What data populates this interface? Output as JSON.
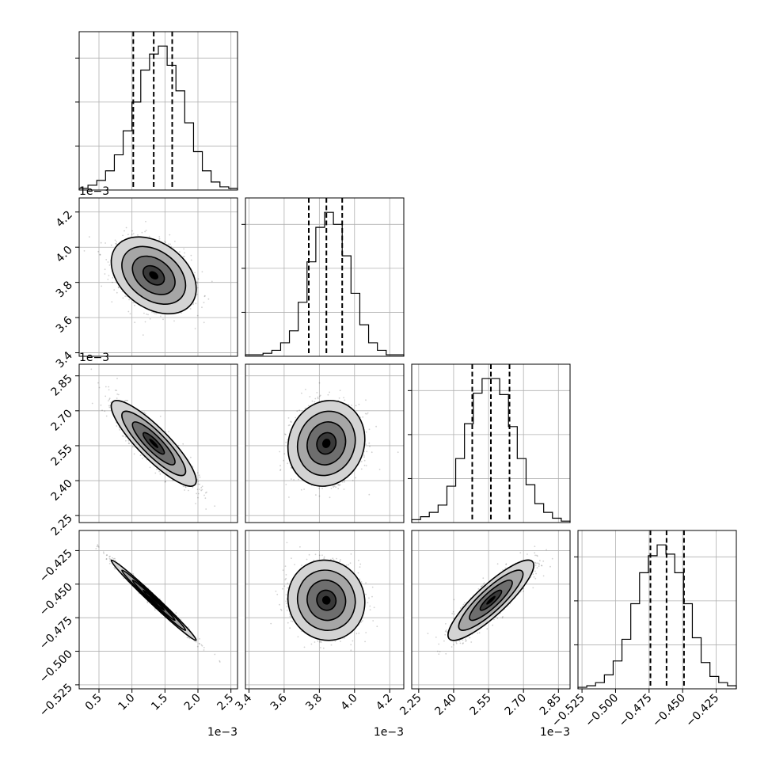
{
  "chart_data": {
    "type": "corner",
    "parameters": [
      {
        "range": [
          0.2,
          2.6
        ],
        "ticks": [
          0.5,
          1.0,
          1.5,
          2.0,
          2.5
        ],
        "tick_labels": [
          "0.5",
          "1.0",
          "1.5",
          "2.0",
          "2.5"
        ],
        "offset_label": "1e−3",
        "quantiles": [
          1.02,
          1.33,
          1.61
        ],
        "mean": 1.33,
        "sd": 0.28
      },
      {
        "range": [
          3.38,
          4.28
        ],
        "ticks": [
          3.4,
          3.6,
          3.8,
          4.0,
          4.2
        ],
        "tick_labels": [
          "3.4",
          "3.6",
          "3.8",
          "4.0",
          "4.2"
        ],
        "offset_label": "1e−3",
        "quantiles": [
          3.74,
          3.84,
          3.93
        ],
        "mean": 3.84,
        "sd": 0.095
      },
      {
        "range": [
          2.22,
          2.9
        ],
        "ticks": [
          2.25,
          2.4,
          2.55,
          2.7,
          2.85
        ],
        "tick_labels": [
          "2.25",
          "2.40",
          "2.55",
          "2.70",
          "2.85"
        ],
        "offset_label": "1e−3",
        "quantiles": [
          2.48,
          2.56,
          2.64
        ],
        "mean": 2.56,
        "sd": 0.08
      },
      {
        "range": [
          -0.528,
          -0.41
        ],
        "ticks": [
          -0.525,
          -0.5,
          -0.475,
          -0.45,
          -0.425
        ],
        "tick_labels": [
          "−0.525",
          "−0.500",
          "−0.475",
          "−0.450",
          "−0.425"
        ],
        "offset_label": "",
        "quantiles": [
          -0.474,
          -0.462,
          -0.449
        ],
        "mean": -0.462,
        "sd": 0.013
      }
    ],
    "histograms": [
      [
        1,
        3,
        6,
        12,
        22,
        37,
        55,
        75,
        85,
        90,
        78,
        62,
        42,
        24,
        12,
        5,
        2,
        1
      ],
      [
        1,
        1,
        2,
        4,
        9,
        17,
        36,
        63,
        86,
        96,
        88,
        67,
        42,
        21,
        9,
        4,
        1,
        1
      ],
      [
        2,
        4,
        7,
        12,
        25,
        44,
        68,
        89,
        99,
        99,
        88,
        66,
        44,
        26,
        13,
        7,
        3,
        1
      ],
      [
        1,
        2,
        4,
        9,
        18,
        32,
        55,
        75,
        86,
        93,
        87,
        75,
        55,
        33,
        17,
        8,
        4,
        2
      ]
    ],
    "correlations": {
      "1-0": -0.35,
      "2-0": -0.87,
      "2-1": 0.1,
      "3-0": -0.99,
      "3-1": -0.05,
      "3-2": 0.87
    },
    "contour_levels_sigma": [
      0.5,
      1.0,
      1.5,
      2.0
    ],
    "grid": true
  }
}
